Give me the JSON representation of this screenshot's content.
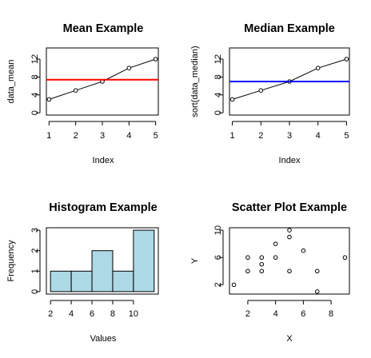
{
  "chart_data": [
    {
      "type": "line",
      "title": "Mean Example",
      "xlabel": "Index",
      "ylabel": "data_mean",
      "x": [
        1,
        2,
        3,
        4,
        5
      ],
      "y": [
        3,
        5,
        7,
        10,
        12
      ],
      "hline": 7.4,
      "hline_color": "#ff0000",
      "xlim": [
        0.9,
        5.1
      ],
      "ylim": [
        -0.5,
        14.5
      ],
      "xticks": [
        "1",
        "2",
        "3",
        "4",
        "5"
      ],
      "yticks": [
        "0",
        "4",
        "8",
        "12"
      ],
      "legend": "none",
      "grid": false
    },
    {
      "type": "line",
      "title": "Median Example",
      "xlabel": "Index",
      "ylabel": "sort(data_median)",
      "x": [
        1,
        2,
        3,
        4,
        5
      ],
      "y": [
        3,
        5,
        7,
        10,
        12
      ],
      "hline": 7,
      "hline_color": "#0000ff",
      "xlim": [
        0.9,
        5.1
      ],
      "ylim": [
        -0.5,
        14.5
      ],
      "xticks": [
        "1",
        "2",
        "3",
        "4",
        "5"
      ],
      "yticks": [
        "0",
        "4",
        "8",
        "12"
      ],
      "legend": "none",
      "grid": false
    },
    {
      "type": "bar",
      "title": "Histogram Example",
      "xlabel": "Values",
      "ylabel": "Frequency",
      "bins": [
        [
          2,
          4
        ],
        [
          4,
          6
        ],
        [
          6,
          8
        ],
        [
          8,
          10
        ],
        [
          10,
          12
        ]
      ],
      "values": [
        1,
        1,
        2,
        1,
        3
      ],
      "fill": "#add8e6",
      "xlim": [
        1.6,
        12.4
      ],
      "ylim": [
        -0.12,
        3.12
      ],
      "xticks": [
        "2",
        "4",
        "6",
        "8",
        "10"
      ],
      "yticks": [
        "0",
        "1",
        "2",
        "3"
      ],
      "legend": "none",
      "grid": false
    },
    {
      "type": "scatter",
      "title": "Scatter Plot Example",
      "xlabel": "X",
      "ylabel": "Y",
      "points": [
        [
          1,
          2
        ],
        [
          2,
          4
        ],
        [
          2,
          6
        ],
        [
          3,
          4
        ],
        [
          3,
          5
        ],
        [
          3,
          6
        ],
        [
          4,
          6
        ],
        [
          4,
          8
        ],
        [
          5,
          4
        ],
        [
          5,
          9
        ],
        [
          5,
          10
        ],
        [
          6,
          7
        ],
        [
          7,
          1
        ],
        [
          7,
          4
        ],
        [
          9,
          6
        ]
      ],
      "xlim": [
        0.68,
        9.32
      ],
      "ylim": [
        0.64,
        10.36
      ],
      "xticks": [
        "2",
        "4",
        "6",
        "8"
      ],
      "yticks": [
        "2",
        "6",
        "10"
      ],
      "legend": "none",
      "grid": false
    }
  ]
}
